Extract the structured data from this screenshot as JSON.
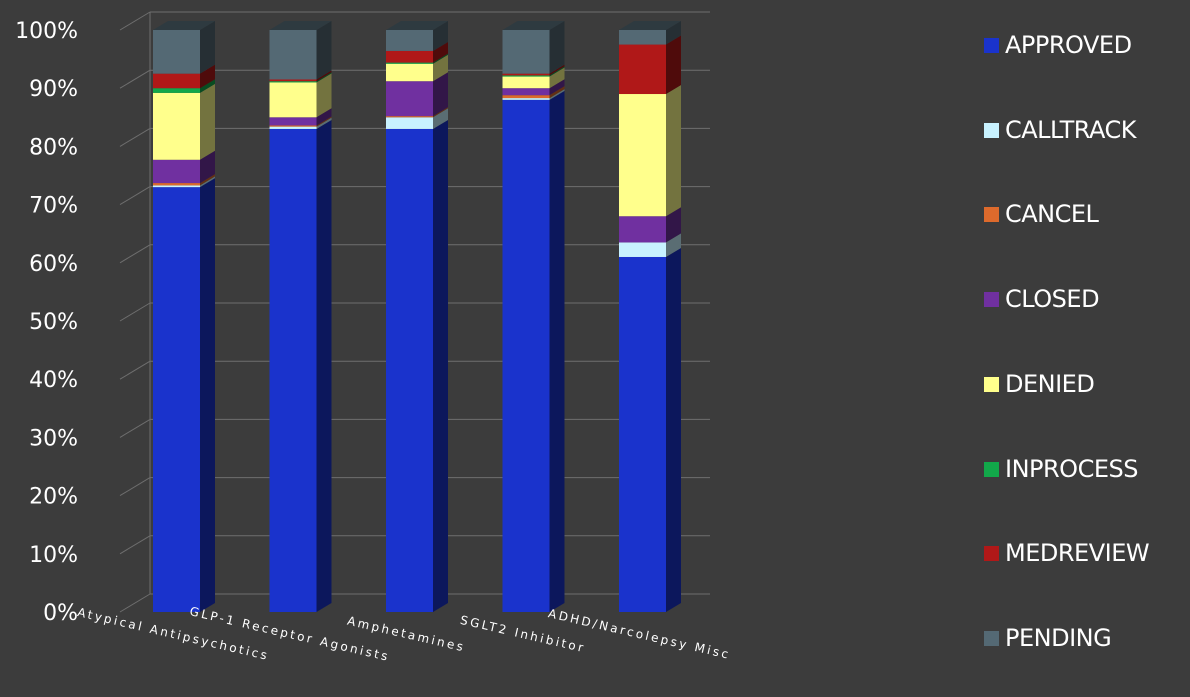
{
  "chart_data": {
    "type": "bar",
    "stacked": true,
    "percent_stacked": true,
    "three_d": true,
    "categories": [
      "Atypical Antipsychotics",
      "GLP-1 Receptor Agonists",
      "Amphetamines",
      "SGLT2 Inhibitor",
      "ADHD/Narcolepsy Misc"
    ],
    "series": [
      {
        "name": "APPROVED",
        "color": "#1a33cc",
        "values": [
          73,
          83,
          83,
          88,
          61
        ]
      },
      {
        "name": "CALLTRACK",
        "color": "#c8f2ff",
        "values": [
          0.3,
          0.4,
          2,
          0.3,
          2.5
        ]
      },
      {
        "name": "CANCEL",
        "color": "#dd6a2c",
        "values": [
          0.4,
          0.2,
          0.2,
          0.5,
          0
        ]
      },
      {
        "name": "CLOSED",
        "color": "#7030a0",
        "values": [
          4,
          1.4,
          6,
          1.2,
          4.5
        ]
      },
      {
        "name": "DENIED",
        "color": "#ffff8c",
        "values": [
          11.5,
          6,
          3,
          2,
          21
        ]
      },
      {
        "name": "INPROCESS",
        "color": "#12a84a",
        "values": [
          0.8,
          0.2,
          0.2,
          0.2,
          0
        ]
      },
      {
        "name": "MEDREVIEW",
        "color": "#b01818",
        "values": [
          2.5,
          0.3,
          2,
          0.3,
          8.5
        ]
      },
      {
        "name": "PENDING",
        "color": "#546974",
        "values": [
          7.5,
          8.5,
          3.6,
          7.5,
          2.5
        ]
      }
    ],
    "yticks": [
      "0%",
      "10%",
      "20%",
      "30%",
      "40%",
      "50%",
      "60%",
      "70%",
      "80%",
      "90%",
      "100%"
    ],
    "ylim": [
      0,
      100
    ],
    "grid": true,
    "legend_position": "right"
  }
}
